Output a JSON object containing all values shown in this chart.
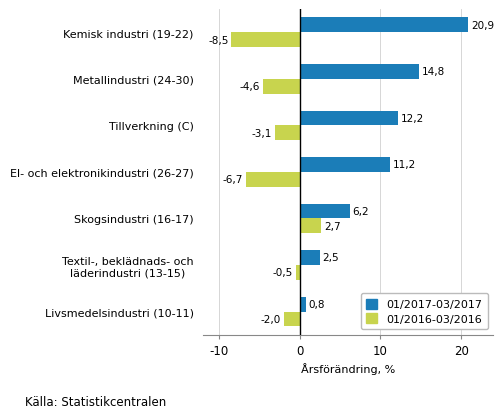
{
  "categories": [
    "Kemisk industri (19-22)",
    "Metallindustri (24-30)",
    "Tillverkning (C)",
    "El- och elektronikindustri (26-27)",
    "Skogsindustri (16-17)",
    "Textil-, beklädnads- och\nläderindustri (13-15)",
    "Livsmedelsindustri (10-11)"
  ],
  "values_2017": [
    20.9,
    14.8,
    12.2,
    11.2,
    6.2,
    2.5,
    0.8
  ],
  "values_2016": [
    -8.5,
    -4.6,
    -3.1,
    -6.7,
    2.7,
    -0.5,
    -2.0
  ],
  "color_2017": "#1b7db8",
  "color_2016": "#c8d44e",
  "xlabel": "Årsförändring, %",
  "legend_2017": "01/2017-03/2017",
  "legend_2016": "01/2016-03/2016",
  "source": "Källa: Statistikcentralen",
  "xlim": [
    -12,
    24
  ],
  "xticks": [
    -10,
    0,
    10,
    20
  ],
  "bar_height": 0.32,
  "fontsize_labels": 8.0,
  "fontsize_ticks": 8.5,
  "fontsize_source": 8.5,
  "fontsize_legend": 8.0,
  "fontsize_values": 7.5
}
